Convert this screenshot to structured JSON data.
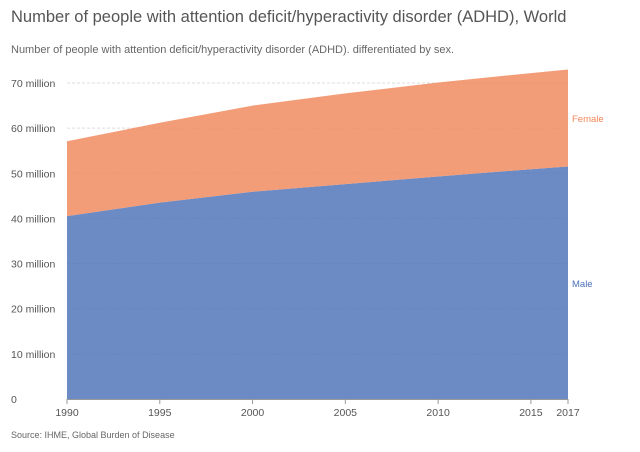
{
  "title": "Number of people with attention deficit/hyperactivity disorder (ADHD), World",
  "subtitle": "Number of people with attention deficit/hyperactivity disorder (ADHD). differentiated by sex.",
  "source": "Source: IHME, Global Burden of Disease",
  "chart_data": {
    "type": "area",
    "stacked": true,
    "x": [
      1990,
      1995,
      2000,
      2005,
      2010,
      2015,
      2017
    ],
    "x_ticks": [
      1990,
      1995,
      2000,
      2005,
      2010,
      2015,
      2017
    ],
    "y_ticks": [
      {
        "value": 0,
        "label": "0"
      },
      {
        "value": 10000000,
        "label": "10 million"
      },
      {
        "value": 20000000,
        "label": "20 million"
      },
      {
        "value": 30000000,
        "label": "30 million"
      },
      {
        "value": 40000000,
        "label": "40 million"
      },
      {
        "value": 50000000,
        "label": "50 million"
      },
      {
        "value": 60000000,
        "label": "60 million"
      },
      {
        "value": 70000000,
        "label": "70 million"
      }
    ],
    "ylim": [
      0,
      70000000
    ],
    "grid": true,
    "series": [
      {
        "name": "Male",
        "color": "#4c72b8",
        "values": [
          40500000,
          43500000,
          45900000,
          47600000,
          49300000,
          50900000,
          51500000
        ]
      },
      {
        "name": "Female",
        "color": "#f0875a",
        "values": [
          16600000,
          17700000,
          19100000,
          20100000,
          20800000,
          21300000,
          21500000
        ]
      }
    ]
  }
}
